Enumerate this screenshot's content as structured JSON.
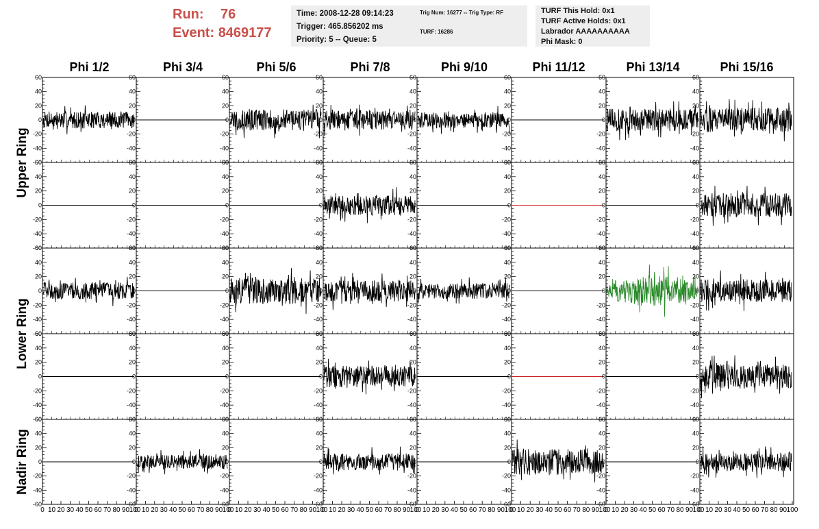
{
  "header": {
    "run_label": "Run:",
    "run_value": "76",
    "event_label": "Event:",
    "event_value": "8469177",
    "time_line": "Time: 2008-12-28 09:14:23",
    "trigger_line": "Trigger: 465.856202 ms",
    "priority_line": "Priority: 5 -- Queue: 5",
    "trig_num_line": "Trig Num: 16277 -- Trig Type: RF",
    "turf_line": "TURF: 16286",
    "turf_hold_line": "TURF This Hold: 0x1",
    "turf_active_line": "TURF Active Holds: 0x1",
    "labrador_line": "Labrador AAAAAAAAAA",
    "phi_mask_line": "Phi Mask: 0"
  },
  "chart_data": {
    "type": "line",
    "columns": [
      "Phi 1/2",
      "Phi 3/4",
      "Phi 5/6",
      "Phi 7/8",
      "Phi 9/10",
      "Phi 11/12",
      "Phi 13/14",
      "Phi 15/16"
    ],
    "ring_labels": [
      "Upper Ring",
      "Lower Ring",
      "Nadir Ring"
    ],
    "ylim": [
      -60,
      60
    ],
    "yticks": [
      -60,
      -40,
      -20,
      0,
      20,
      40,
      60
    ],
    "xlim": [
      0,
      100
    ],
    "xticks": [
      0,
      10,
      20,
      30,
      40,
      50,
      60,
      70,
      80,
      90,
      100
    ],
    "colors": {
      "default": "#000000",
      "flat_highlight": "#cc2222",
      "triggered": "#2a8a2a"
    },
    "panels": [
      [
        {
          "a": 12,
          "c": "#000000"
        },
        {
          "a": 0,
          "c": "#000000"
        },
        {
          "a": 15,
          "c": "#000000"
        },
        {
          "a": 14,
          "c": "#000000"
        },
        {
          "a": 11,
          "c": "#000000"
        },
        {
          "a": 0,
          "c": "#000000"
        },
        {
          "a": 16,
          "c": "#000000"
        },
        {
          "a": 17,
          "c": "#000000"
        }
      ],
      [
        {
          "a": 0,
          "c": "#000000"
        },
        {
          "a": 0,
          "c": "#000000"
        },
        {
          "a": 0,
          "c": "#000000"
        },
        {
          "a": 14,
          "c": "#000000"
        },
        {
          "a": 0,
          "c": "#000000"
        },
        {
          "a": 0,
          "c": "#cc2222"
        },
        {
          "a": 0,
          "c": "#000000"
        },
        {
          "a": 17,
          "c": "#000000"
        }
      ],
      [
        {
          "a": 12,
          "c": "#000000"
        },
        {
          "a": 0,
          "c": "#000000"
        },
        {
          "a": 18,
          "c": "#000000"
        },
        {
          "a": 15,
          "c": "#000000"
        },
        {
          "a": 11,
          "c": "#000000"
        },
        {
          "a": 0,
          "c": "#000000"
        },
        {
          "a": 18,
          "c": "#2a8a2a"
        },
        {
          "a": 16,
          "c": "#000000"
        }
      ],
      [
        {
          "a": 0,
          "c": "#000000"
        },
        {
          "a": 0,
          "c": "#000000"
        },
        {
          "a": 0,
          "c": "#000000"
        },
        {
          "a": 15,
          "c": "#000000"
        },
        {
          "a": 0,
          "c": "#000000"
        },
        {
          "a": 0,
          "c": "#cc2222"
        },
        {
          "a": 0,
          "c": "#000000"
        },
        {
          "a": 17,
          "c": "#000000"
        }
      ],
      [
        {
          "a": 0,
          "c": "#000000"
        },
        {
          "a": 10,
          "c": "#000000"
        },
        {
          "a": 0,
          "c": "#000000"
        },
        {
          "a": 12,
          "c": "#000000"
        },
        {
          "a": 0,
          "c": "#000000"
        },
        {
          "a": 18,
          "c": "#000000"
        },
        {
          "a": 0,
          "c": "#000000"
        },
        {
          "a": 13,
          "c": "#000000"
        }
      ]
    ]
  }
}
